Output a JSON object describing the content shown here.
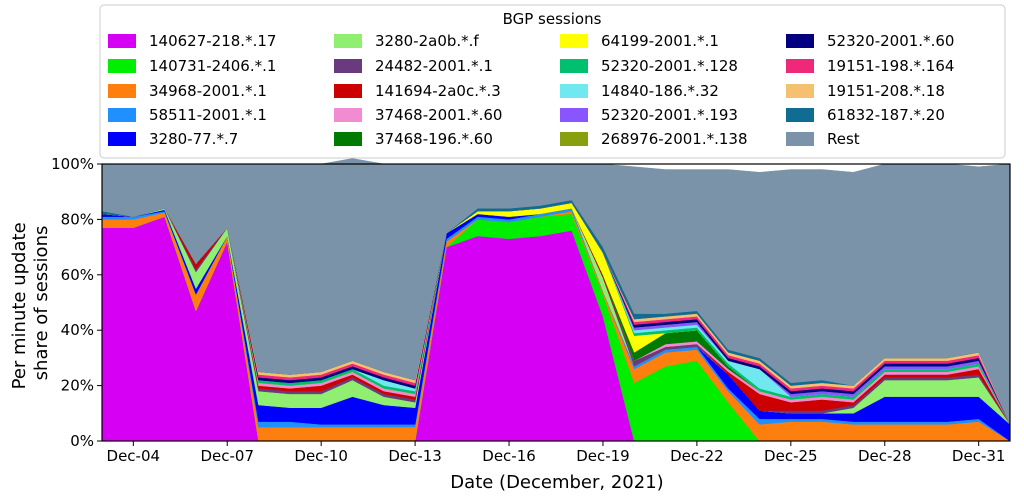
{
  "chart_data": {
    "type": "area",
    "stacked": true,
    "xlabel": "Date (December, 2021)",
    "ylabel": [
      "Per minute update",
      "share of sessions"
    ],
    "ylim": [
      0,
      100
    ],
    "yticks": [
      "0%",
      "20%",
      "40%",
      "60%",
      "80%",
      "100%"
    ],
    "x": [
      3,
      4,
      5,
      6,
      7,
      8,
      9,
      10,
      11,
      12,
      13,
      14,
      15,
      16,
      17,
      18,
      19,
      20,
      21,
      22,
      23,
      24,
      25,
      26,
      27,
      28,
      29,
      30,
      31,
      32
    ],
    "xlim": [
      3,
      32
    ],
    "xticks": [
      {
        "x": 4,
        "label": "Dec-04"
      },
      {
        "x": 7,
        "label": "Dec-07"
      },
      {
        "x": 10,
        "label": "Dec-10"
      },
      {
        "x": 13,
        "label": "Dec-13"
      },
      {
        "x": 16,
        "label": "Dec-16"
      },
      {
        "x": 19,
        "label": "Dec-19"
      },
      {
        "x": 22,
        "label": "Dec-22"
      },
      {
        "x": 25,
        "label": "Dec-25"
      },
      {
        "x": 28,
        "label": "Dec-28"
      },
      {
        "x": 31,
        "label": "Dec-31"
      }
    ],
    "legend_title": "BGP sessions",
    "legend_position": "top-center",
    "series": [
      {
        "name": "140627-218.*.17",
        "color": "#d600f5",
        "values": [
          77,
          77,
          81,
          47,
          72,
          0,
          0,
          0,
          0,
          0,
          0,
          70,
          74,
          73,
          74,
          76,
          45,
          0,
          0,
          0,
          0,
          0,
          0,
          0,
          0,
          0,
          0,
          0,
          0,
          0
        ]
      },
      {
        "name": "140731-2406.*.1",
        "color": "#00ee00",
        "values": [
          0,
          0,
          0,
          0,
          0,
          0,
          0,
          0,
          0,
          0,
          0,
          0,
          6,
          6,
          7,
          6,
          8,
          21,
          27,
          29,
          14,
          0,
          0,
          0,
          0,
          0,
          0,
          0,
          0,
          0
        ]
      },
      {
        "name": "34968-2001.*.1",
        "color": "#ff7f0e",
        "values": [
          3,
          3,
          1.5,
          6,
          2,
          5,
          5,
          5,
          5,
          5,
          5,
          2,
          0,
          0,
          0,
          1,
          1,
          5,
          5,
          4,
          4,
          6,
          7,
          7,
          6,
          6,
          6,
          6,
          7,
          0
        ]
      },
      {
        "name": "58511-2001.*.1",
        "color": "#1e90ff",
        "values": [
          1,
          1,
          0.5,
          0,
          0,
          2,
          2,
          1,
          1,
          1,
          1,
          1,
          1,
          1,
          1,
          1,
          0,
          1,
          1,
          1,
          1,
          2,
          1,
          1,
          1,
          1,
          1,
          1,
          1,
          0
        ]
      },
      {
        "name": "3280-77.*.7",
        "color": "#0000ff",
        "values": [
          1,
          0,
          0.5,
          2,
          0,
          6,
          5,
          6,
          10,
          7,
          6,
          2,
          1,
          1,
          0,
          0,
          0,
          0,
          0,
          0,
          5,
          3,
          2,
          2,
          3,
          9,
          9,
          9,
          8,
          6
        ]
      },
      {
        "name": "3280-2a0b.*.f",
        "color": "#90ee70",
        "values": [
          0,
          0,
          0.5,
          6,
          3,
          5,
          5,
          5,
          6,
          3,
          2,
          0,
          0,
          0,
          0,
          0,
          5,
          0,
          0,
          0,
          0,
          0,
          0,
          0,
          2,
          6,
          6,
          6,
          7,
          0
        ]
      },
      {
        "name": "24482-2001.*.1",
        "color": "#6b3a7e",
        "values": [
          0,
          0,
          0,
          1,
          0,
          1,
          1,
          1,
          1,
          1,
          1,
          0,
          0,
          0,
          0,
          0,
          0,
          2,
          1,
          1,
          0,
          0,
          1,
          1,
          1,
          1,
          1,
          1,
          1,
          0
        ]
      },
      {
        "name": "141694-2a0c.*.3",
        "color": "#cc0000",
        "values": [
          0,
          0,
          0,
          2,
          0,
          1,
          1,
          2,
          1,
          1,
          1,
          0,
          0,
          0,
          0,
          0,
          1,
          0,
          0,
          0,
          1,
          6,
          3,
          4,
          1,
          1,
          1,
          1,
          2,
          0
        ]
      },
      {
        "name": "37468-2001.*.60",
        "color": "#f28cd2",
        "values": [
          0,
          0,
          0,
          0,
          0,
          1,
          1,
          1,
          1,
          1,
          1,
          0,
          0,
          0,
          0,
          0,
          0,
          0,
          1,
          1,
          1,
          1,
          1,
          1,
          1,
          1,
          1,
          1,
          1,
          0
        ]
      },
      {
        "name": "37468-196.*.60",
        "color": "#007a00",
        "values": [
          0,
          0,
          0,
          0,
          0,
          0,
          0,
          0,
          0,
          0,
          0,
          0,
          0,
          0,
          0,
          0,
          0,
          3,
          4,
          4,
          1,
          0,
          0,
          0,
          0,
          0,
          0,
          0,
          0,
          0
        ]
      },
      {
        "name": "64199-2001.*.1",
        "color": "#ffff00",
        "values": [
          0,
          0,
          0,
          0,
          0,
          0,
          0,
          0,
          0,
          0,
          0,
          0,
          1,
          2,
          2,
          2,
          8,
          6,
          0,
          0,
          0,
          0,
          0,
          0,
          0,
          0,
          0,
          0,
          0,
          0
        ]
      },
      {
        "name": "52320-2001.*.128",
        "color": "#00c070",
        "values": [
          0,
          0,
          0,
          0,
          0,
          1,
          1,
          1,
          1,
          1,
          1,
          0,
          0,
          0,
          0,
          0,
          0,
          1,
          1,
          1,
          1,
          1,
          1,
          1,
          1,
          1,
          1,
          1,
          1,
          0
        ]
      },
      {
        "name": "14840-186.*.32",
        "color": "#70e8f0",
        "values": [
          0,
          0,
          0,
          0,
          0,
          0,
          0,
          0,
          0,
          2,
          1,
          0,
          0,
          0,
          0,
          0,
          0,
          1,
          1,
          1,
          1,
          7,
          0,
          0,
          0,
          0,
          0,
          0,
          0,
          0
        ]
      },
      {
        "name": "52320-2001.*.193",
        "color": "#8855ff",
        "values": [
          0,
          0,
          0,
          0,
          0,
          0,
          0,
          0,
          0,
          0,
          0,
          0,
          0,
          0,
          0,
          0,
          0,
          1,
          1,
          1,
          0,
          0,
          1,
          1,
          1,
          1,
          1,
          1,
          1,
          0
        ]
      },
      {
        "name": "268976-2001.*.138",
        "color": "#88a010",
        "values": [
          0,
          0,
          0,
          0,
          0,
          0,
          0,
          0,
          0,
          0,
          0,
          0,
          0,
          0,
          0,
          0,
          0,
          0,
          0,
          0,
          0,
          0,
          0,
          0,
          0,
          0,
          0,
          0,
          0,
          0
        ]
      },
      {
        "name": "52320-2001.*.60",
        "color": "#000080",
        "values": [
          0,
          0,
          0,
          0,
          0,
          1,
          1,
          1,
          1,
          1,
          1,
          0,
          0,
          0,
          0,
          0,
          0,
          1,
          1,
          1,
          1,
          1,
          1,
          1,
          1,
          1,
          1,
          1,
          1,
          0
        ]
      },
      {
        "name": "19151-198.*.164",
        "color": "#f0287a",
        "values": [
          0,
          0,
          0,
          0,
          0,
          1,
          1,
          1,
          1,
          1,
          1,
          0,
          0,
          0,
          0,
          0,
          0,
          1,
          1,
          1,
          1,
          1,
          1,
          1,
          1,
          1,
          1,
          1,
          1,
          0
        ]
      },
      {
        "name": "19151-208.*.18",
        "color": "#f5c070",
        "values": [
          0,
          0,
          0,
          0,
          0,
          1,
          1,
          1,
          1,
          1,
          1,
          0,
          0,
          0,
          0,
          0,
          0,
          1,
          1,
          1,
          1,
          1,
          1,
          1,
          1,
          1,
          1,
          1,
          1,
          0
        ]
      },
      {
        "name": "61832-187.*.20",
        "color": "#106c90",
        "values": [
          1,
          0,
          0,
          0,
          0,
          0,
          0,
          0,
          0,
          0,
          0,
          0,
          1,
          1,
          1,
          1,
          2,
          2,
          1,
          1,
          1,
          1,
          1,
          1,
          0,
          0,
          0,
          0,
          0,
          0
        ]
      },
      {
        "name": "Rest",
        "color": "#7a93a8",
        "values": [
          17,
          19,
          16,
          36,
          23,
          75,
          76,
          75,
          73,
          75,
          78,
          25,
          16,
          16,
          15,
          13,
          30,
          53,
          52,
          51,
          65,
          67,
          77,
          76,
          77,
          70,
          70,
          70,
          67,
          94
        ]
      }
    ]
  }
}
